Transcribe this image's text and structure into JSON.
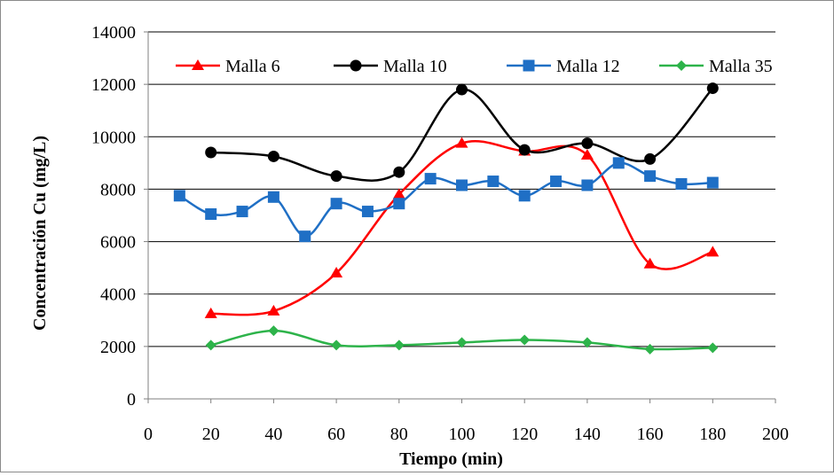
{
  "chart_data": {
    "type": "line",
    "title": "",
    "xlabel": "Tiempo (min)",
    "ylabel": "Concentración Cu (mg/L)",
    "xlim": [
      0,
      200
    ],
    "ylim": [
      0,
      14000
    ],
    "xticks": [
      0,
      20,
      40,
      60,
      80,
      100,
      120,
      140,
      160,
      180,
      200
    ],
    "yticks": [
      0,
      2000,
      4000,
      6000,
      8000,
      10000,
      12000,
      14000
    ],
    "grid": "horizontal",
    "legend_position": "top",
    "series": [
      {
        "name": "Malla 6",
        "color": "#ff0000",
        "marker": "triangle",
        "x": [
          20,
          40,
          60,
          80,
          100,
          120,
          140,
          160,
          180
        ],
        "y": [
          3250,
          3350,
          4800,
          7800,
          9750,
          9450,
          9300,
          5150,
          5600
        ]
      },
      {
        "name": "Malla 10",
        "color": "#000000",
        "marker": "circle",
        "x": [
          20,
          40,
          60,
          80,
          100,
          120,
          140,
          160,
          180
        ],
        "y": [
          9400,
          9250,
          8500,
          8650,
          11800,
          9500,
          9750,
          9150,
          11850
        ]
      },
      {
        "name": "Malla 12",
        "color": "#1f6fc5",
        "marker": "square",
        "x": [
          10,
          20,
          30,
          40,
          50,
          60,
          70,
          80,
          90,
          100,
          110,
          120,
          130,
          140,
          150,
          160,
          170,
          180
        ],
        "y": [
          7750,
          7050,
          7150,
          7700,
          6200,
          7450,
          7150,
          7450,
          8400,
          8150,
          8300,
          7750,
          8300,
          8150,
          9000,
          8500,
          8200,
          8250
        ]
      },
      {
        "name": "Malla 35",
        "color": "#2db34a",
        "marker": "diamond",
        "x": [
          20,
          40,
          60,
          80,
          100,
          120,
          140,
          160,
          180
        ],
        "y": [
          2050,
          2600,
          2050,
          2050,
          2150,
          2250,
          2150,
          1900,
          1950
        ]
      }
    ]
  }
}
